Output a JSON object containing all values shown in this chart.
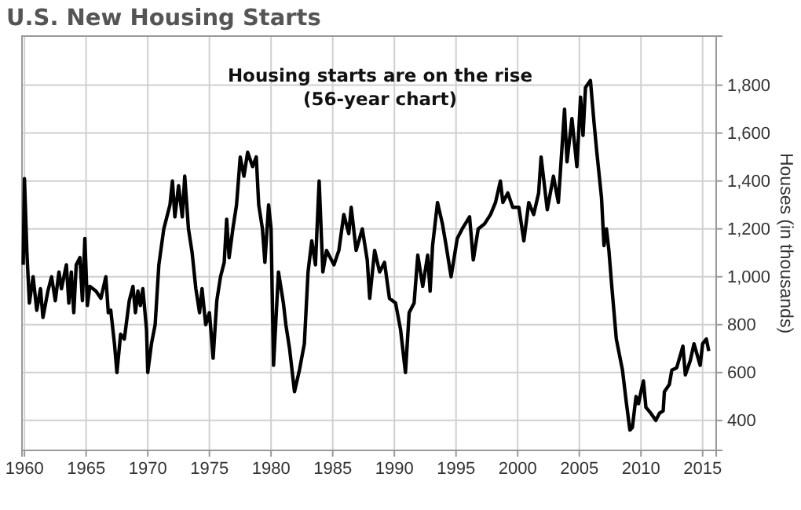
{
  "chart_data": {
    "type": "line",
    "title": "U.S. New Housing Starts",
    "ylabel": "Houses (in thousands)",
    "annotations": [
      "Housing starts are on the rise\n(56-year chart)"
    ],
    "xlim": [
      1959.8,
      2016.1
    ],
    "xticks": [
      1960,
      1965,
      1970,
      1975,
      1980,
      1985,
      1990,
      1995,
      2000,
      2005,
      2010,
      2015
    ],
    "ylim": [
      275,
      2005
    ],
    "yticks": [
      400,
      600,
      800,
      {
        "value": 1000,
        "label": "1,000"
      },
      {
        "value": 1200,
        "label": "1,200"
      },
      {
        "value": 1400,
        "label": "1,400"
      },
      {
        "value": 1600,
        "label": "1,600"
      },
      {
        "value": 1800,
        "label": "1,800"
      }
    ],
    "grid": true,
    "marker": "none",
    "line_style": "solid",
    "series": [
      {
        "color": "#000000",
        "x": [
          1959.9,
          1960.0,
          1960.2,
          1960.4,
          1960.7,
          1961.0,
          1961.3,
          1961.5,
          1961.9,
          1962.2,
          1962.5,
          1962.8,
          1963.0,
          1963.4,
          1963.6,
          1963.8,
          1964.0,
          1964.2,
          1964.5,
          1964.7,
          1964.9,
          1965.1,
          1965.3,
          1965.8,
          1966.2,
          1966.6,
          1966.8,
          1967.0,
          1967.3,
          1967.5,
          1967.8,
          1968.1,
          1968.5,
          1968.8,
          1969.0,
          1969.2,
          1969.4,
          1969.6,
          1969.9,
          1970.0,
          1970.3,
          1970.6,
          1970.9,
          1971.3,
          1971.8,
          1972.0,
          1972.2,
          1972.5,
          1972.8,
          1973.0,
          1973.3,
          1973.6,
          1973.9,
          1974.2,
          1974.4,
          1974.7,
          1975.0,
          1975.1,
          1975.3,
          1975.6,
          1975.9,
          1976.2,
          1976.4,
          1976.6,
          1976.9,
          1977.2,
          1977.5,
          1977.8,
          1978.1,
          1978.5,
          1978.8,
          1979.0,
          1979.3,
          1979.5,
          1979.8,
          1980.0,
          1980.2,
          1980.6,
          1981.0,
          1981.2,
          1981.5,
          1981.9,
          1982.3,
          1982.7,
          1983.0,
          1983.3,
          1983.6,
          1983.9,
          1984.2,
          1984.5,
          1985.1,
          1985.5,
          1985.9,
          1986.3,
          1986.5,
          1986.9,
          1987.4,
          1987.8,
          1988.0,
          1988.4,
          1988.8,
          1989.2,
          1989.6,
          1990.1,
          1990.5,
          1990.9,
          1991.2,
          1991.6,
          1991.9,
          1992.3,
          1992.7,
          1992.9,
          1993.1,
          1993.5,
          1993.9,
          1994.2,
          1994.6,
          1995.1,
          1995.5,
          1996.1,
          1996.4,
          1996.8,
          1997.3,
          1997.8,
          1998.2,
          1998.6,
          1998.8,
          1999.2,
          1999.6,
          2000.1,
          2000.5,
          2000.9,
          2001.3,
          2001.7,
          2001.9,
          2002.4,
          2002.9,
          2003.3,
          2003.8,
          2004.0,
          2004.4,
          2004.8,
          2005.1,
          2005.3,
          2005.5,
          2005.9,
          2006.2,
          2006.4,
          2006.8,
          2007.0,
          2007.2,
          2007.4,
          2007.6,
          2008.0,
          2008.5,
          2008.8,
          2009.1,
          2009.3,
          2009.6,
          2009.8,
          2010.0,
          2010.2,
          2010.4,
          2010.8,
          2011.2,
          2011.5,
          2011.8,
          2011.9,
          2012.3,
          2012.5,
          2012.9,
          2013.4,
          2013.6,
          2014.0,
          2014.3,
          2014.8,
          2015.0,
          2015.3,
          2015.5
        ],
        "values": [
          1050,
          1410,
          1100,
          890,
          1000,
          860,
          950,
          830,
          940,
          1000,
          900,
          1020,
          950,
          1050,
          890,
          1020,
          850,
          1050,
          1080,
          900,
          1160,
          880,
          960,
          940,
          910,
          1000,
          850,
          860,
          720,
          600,
          760,
          740,
          900,
          960,
          850,
          940,
          880,
          950,
          780,
          600,
          720,
          800,
          1050,
          1200,
          1300,
          1400,
          1250,
          1380,
          1250,
          1420,
          1200,
          1100,
          950,
          850,
          950,
          800,
          850,
          790,
          660,
          900,
          1000,
          1060,
          1240,
          1080,
          1200,
          1300,
          1500,
          1420,
          1520,
          1460,
          1500,
          1300,
          1200,
          1060,
          1300,
          1200,
          630,
          1020,
          890,
          800,
          700,
          520,
          610,
          720,
          1020,
          1150,
          1050,
          1400,
          1020,
          1110,
          1050,
          1110,
          1260,
          1180,
          1290,
          1110,
          1200,
          1070,
          910,
          1110,
          1020,
          1060,
          910,
          890,
          780,
          600,
          850,
          890,
          1090,
          960,
          1090,
          940,
          1130,
          1310,
          1220,
          1130,
          1000,
          1160,
          1200,
          1250,
          1070,
          1200,
          1220,
          1260,
          1310,
          1400,
          1310,
          1350,
          1290,
          1290,
          1150,
          1310,
          1260,
          1350,
          1500,
          1280,
          1420,
          1310,
          1700,
          1480,
          1660,
          1460,
          1750,
          1590,
          1790,
          1820,
          1640,
          1530,
          1330,
          1130,
          1200,
          1110,
          980,
          740,
          610,
          480,
          360,
          370,
          500,
          470,
          520,
          565,
          455,
          430,
          400,
          430,
          440,
          520,
          550,
          610,
          620,
          710,
          590,
          650,
          720,
          630,
          720,
          740,
          690
        ]
      }
    ]
  }
}
